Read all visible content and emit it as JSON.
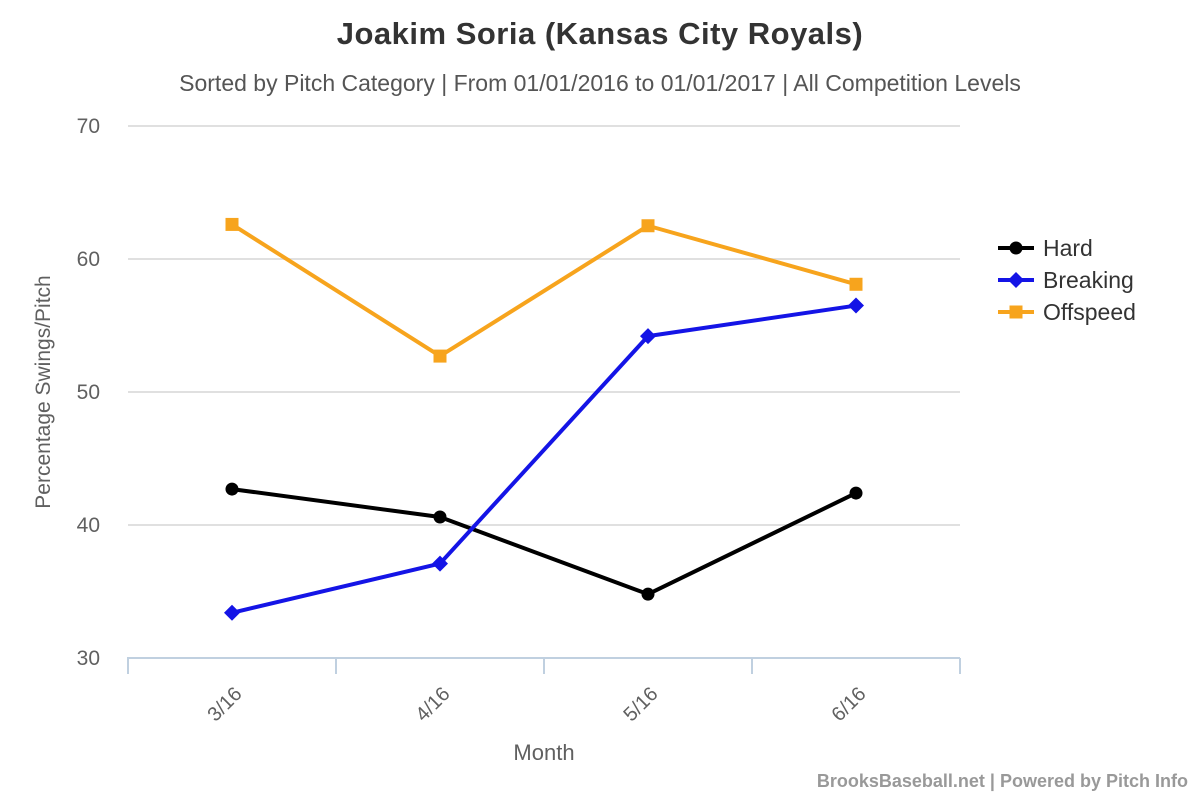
{
  "chart_data": {
    "type": "line",
    "title": "Joakim Soria (Kansas City Royals)",
    "subtitle": "Sorted by Pitch Category | From 01/01/2016 to 01/01/2017 | All Competition Levels",
    "xlabel": "Month",
    "ylabel": "Percentage Swings/Pitch",
    "categories": [
      "3/16",
      "4/16",
      "5/16",
      "6/16"
    ],
    "series": [
      {
        "name": "Hard",
        "marker": "circle",
        "color": "#000000",
        "values": [
          42.7,
          40.6,
          34.8,
          42.4
        ]
      },
      {
        "name": "Breaking",
        "marker": "diamond",
        "color": "#1414e6",
        "values": [
          33.4,
          37.1,
          54.2,
          56.5
        ]
      },
      {
        "name": "Offspeed",
        "marker": "square",
        "color": "#f7a41d",
        "values": [
          62.6,
          52.7,
          62.5,
          58.1
        ]
      }
    ],
    "ylim": [
      30,
      70
    ],
    "yticks": [
      70,
      60,
      50,
      40,
      30
    ],
    "grid": true,
    "legend_position": "right",
    "colors": {
      "gridline": "#e0e0e0",
      "axis_line": "#c0d0e0",
      "tick_label": "#606060"
    }
  },
  "footer": {
    "credit": "BrooksBaseball.net | Powered by Pitch Info"
  }
}
